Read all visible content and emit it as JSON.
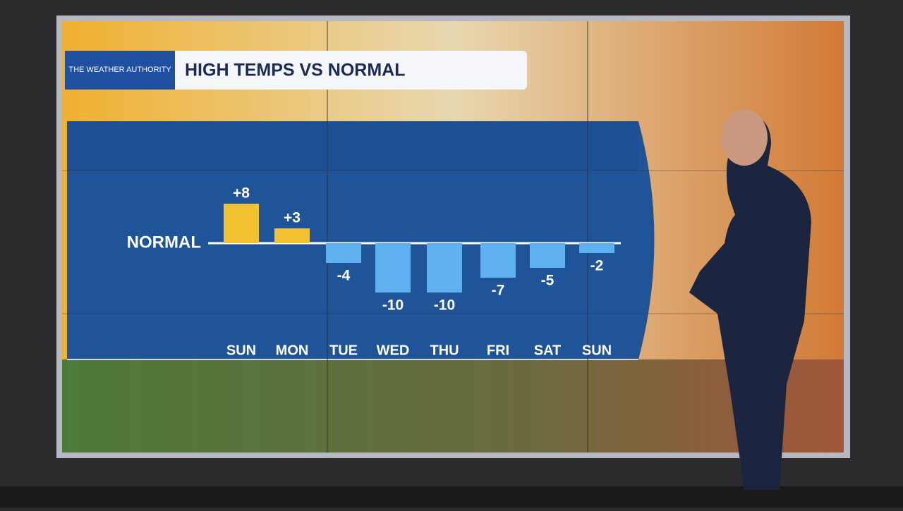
{
  "chart_data": {
    "type": "bar",
    "title": "HIGH TEMPS VS NORMAL",
    "brand": "THE WEATHER AUTHORITY",
    "baseline_label": "NORMAL",
    "categories": [
      "SUN",
      "MON",
      "TUE",
      "WED",
      "THU",
      "FRI",
      "SAT",
      "SUN"
    ],
    "values": [
      8,
      3,
      -4,
      -10,
      -10,
      -7,
      -5,
      -2
    ],
    "value_labels": [
      "+8",
      "+3",
      "-4",
      "-10",
      "-10",
      "-7",
      "-5",
      "-2"
    ],
    "positive_color": "#f2c230",
    "negative_color": "#5fb0f0"
  }
}
